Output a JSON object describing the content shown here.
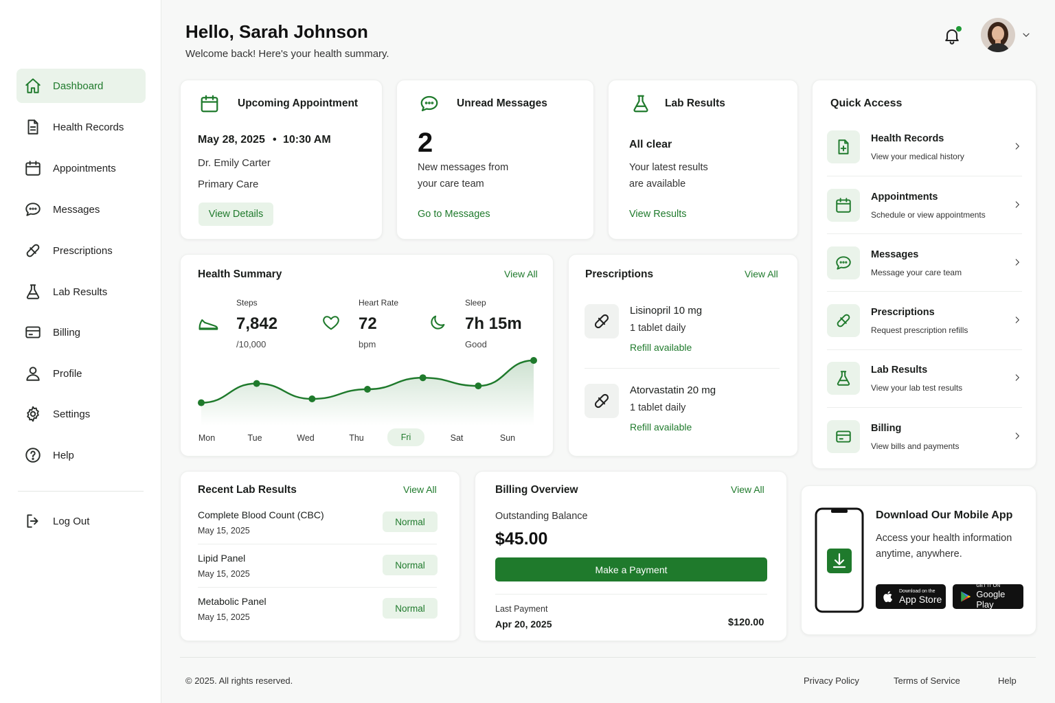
{
  "sidebar": {
    "items": [
      {
        "label": "Dashboard",
        "icon": "home-icon"
      },
      {
        "label": "Health Records",
        "icon": "document-icon"
      },
      {
        "label": "Appointments",
        "icon": "calendar-icon"
      },
      {
        "label": "Messages",
        "icon": "chat-icon"
      },
      {
        "label": "Prescriptions",
        "icon": "pill-icon"
      },
      {
        "label": "Lab Results",
        "icon": "flask-icon"
      },
      {
        "label": "Billing",
        "icon": "credit-card-icon"
      },
      {
        "label": "Profile",
        "icon": "user-icon"
      },
      {
        "label": "Settings",
        "icon": "gear-icon"
      },
      {
        "label": "Help",
        "icon": "help-icon"
      }
    ],
    "logout": "Log Out"
  },
  "header": {
    "greeting": "Hello, Sarah Johnson",
    "subtitle": "Welcome back! Here's your health summary."
  },
  "appointment": {
    "title": "Upcoming Appointment",
    "date": "May 28, 2025",
    "time": "10:30 AM",
    "doctor": "Dr. Emily Carter",
    "type": "Primary Care",
    "button": "View Details"
  },
  "messages": {
    "title": "Unread Messages",
    "count": "2",
    "line1": "New messages from",
    "line2": "your care team",
    "link": "Go to Messages"
  },
  "lab": {
    "title": "Lab Results",
    "status": "All clear",
    "line1": "Your latest results",
    "line2": "are available",
    "link": "View Results"
  },
  "quick_access": {
    "title": "Quick Access",
    "items": [
      {
        "title": "Health Records",
        "desc": "View your medical history"
      },
      {
        "title": "Appointments",
        "desc": "Schedule or view appointments"
      },
      {
        "title": "Messages",
        "desc": "Message your care team"
      },
      {
        "title": "Prescriptions",
        "desc": "Request prescription refills"
      },
      {
        "title": "Lab Results",
        "desc": "View your lab test results"
      },
      {
        "title": "Billing",
        "desc": "View bills and payments"
      }
    ]
  },
  "health_summary": {
    "title": "Health Summary",
    "view_all": "View All",
    "steps": {
      "label": "Steps",
      "value": "7,842",
      "sub": "/10,000"
    },
    "heart": {
      "label": "Heart Rate",
      "value": "72",
      "sub": "bpm"
    },
    "sleep": {
      "label": "Sleep",
      "value": "7h 15m",
      "sub": "Good"
    },
    "days": [
      "Mon",
      "Tue",
      "Wed",
      "Thu",
      "Fri",
      "Sat",
      "Sun"
    ],
    "active_day": "Fri"
  },
  "chart_data": {
    "type": "area",
    "x": [
      "Mon",
      "Tue",
      "Wed",
      "Thu",
      "Fri",
      "Sat",
      "Sun"
    ],
    "values": [
      0.12,
      0.52,
      0.2,
      0.4,
      0.64,
      0.47,
      1.0
    ],
    "color": "#1f7a2c"
  },
  "prescriptions": {
    "title": "Prescriptions",
    "view_all": "View All",
    "items": [
      {
        "name": "Lisinopril 10 mg",
        "dose": "1 tablet daily",
        "status": "Refill available"
      },
      {
        "name": "Atorvastatin 20 mg",
        "dose": "1 tablet daily",
        "status": "Refill available"
      }
    ]
  },
  "recent_labs": {
    "title": "Recent Lab Results",
    "view_all": "View All",
    "items": [
      {
        "name": "Complete Blood Count (CBC)",
        "date": "May 15, 2025",
        "status": "Normal"
      },
      {
        "name": "Lipid Panel",
        "date": "May 15, 2025",
        "status": "Normal"
      },
      {
        "name": "Metabolic Panel",
        "date": "May 15, 2025",
        "status": "Normal"
      }
    ]
  },
  "billing": {
    "title": "Billing Overview",
    "view_all": "View All",
    "balance_label": "Outstanding Balance",
    "balance": "$45.00",
    "button": "Make a Payment",
    "last_label": "Last Payment",
    "last_date": "Apr 20, 2025",
    "last_amount": "$120.00"
  },
  "app_promo": {
    "title": "Download Our Mobile App",
    "line1": "Access your health information",
    "line2": "anytime, anywhere.",
    "appstore_small": "Download on the",
    "appstore_big": "App Store",
    "play_small": "GET IT ON",
    "play_big": "Google Play"
  },
  "footer": {
    "copyright": "© 2025. All rights reserved.",
    "links": [
      "Privacy Policy",
      "Terms of Service",
      "Help"
    ]
  },
  "colors": {
    "accent": "#1f7a2c",
    "accent_soft": "#e8f3e8",
    "background": "#f7f8f7"
  }
}
